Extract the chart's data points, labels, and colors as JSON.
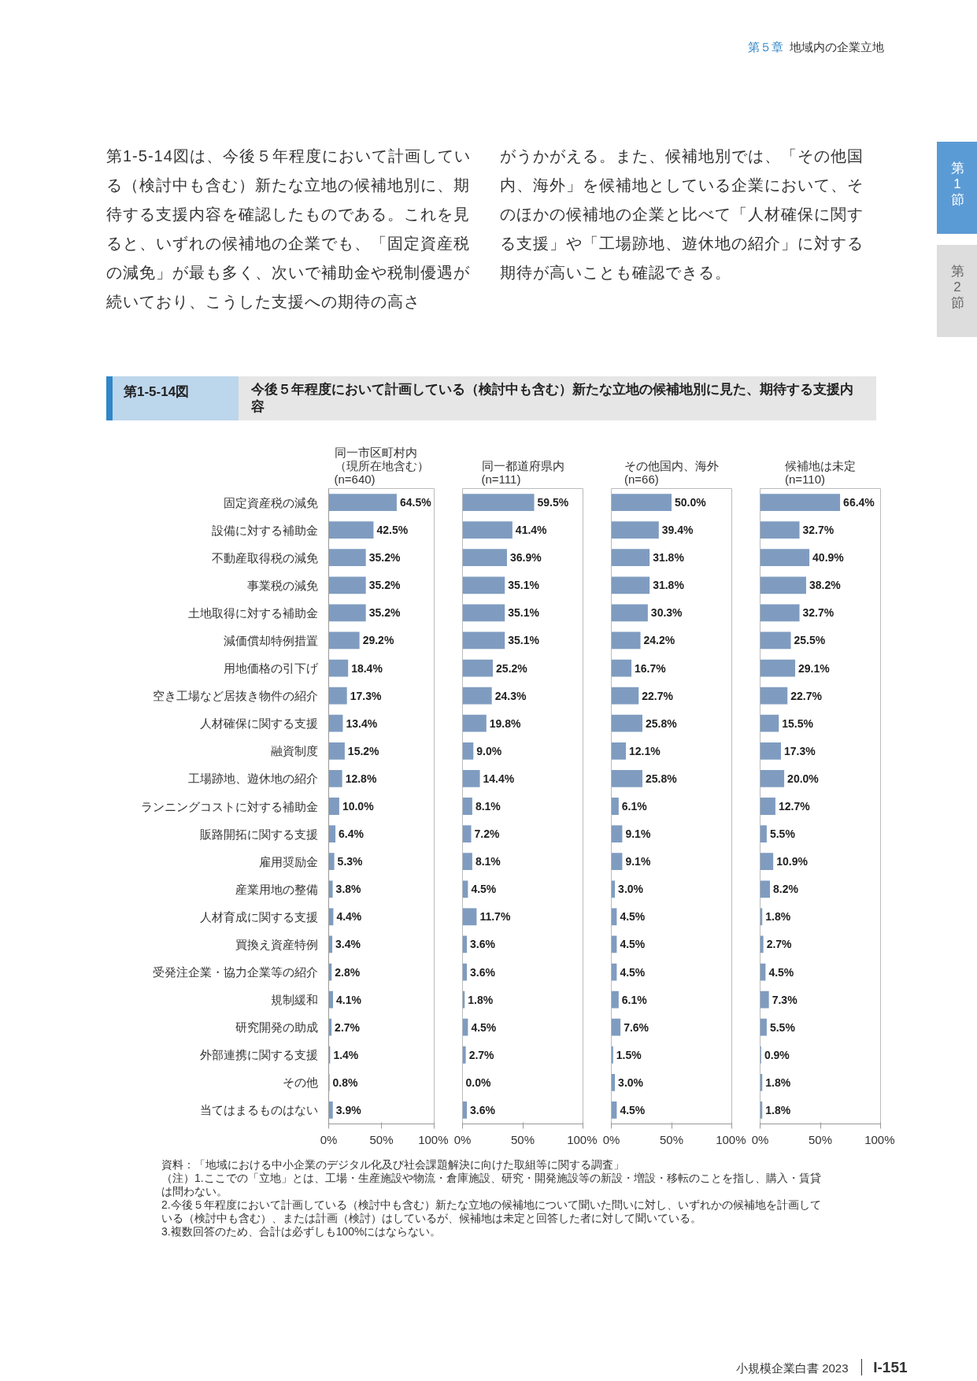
{
  "chart_data": [
    {
      "type": "bar",
      "orientation": "horizontal",
      "title": "同一市区町村内（現所在地含む）(n=640)",
      "categories": [
        "固定資産税の減免",
        "設備に対する補助金",
        "不動産取得税の減免",
        "事業税の減免",
        "土地取得に対する補助金",
        "減価償却特例措置",
        "用地価格の引下げ",
        "空き工場など居抜き物件の紹介",
        "人材確保に関する支援",
        "融資制度",
        "工場跡地、遊休地の紹介",
        "ランニングコストに対する補助金",
        "販路開拓に関する支援",
        "雇用奨励金",
        "産業用地の整備",
        "人材育成に関する支援",
        "買換え資産特例",
        "受発注企業・協力企業等の紹介",
        "規制緩和",
        "研究開発の助成",
        "外部連携に関する支援",
        "その他",
        "当てはまるものはない"
      ],
      "values": [
        64.5,
        42.5,
        35.2,
        35.2,
        35.2,
        29.2,
        18.4,
        17.3,
        13.4,
        15.2,
        12.8,
        10.0,
        6.4,
        5.3,
        3.8,
        4.4,
        3.4,
        2.8,
        4.1,
        2.7,
        1.4,
        0.8,
        3.9
      ],
      "value_labels": [
        "64.5%",
        "42.5%",
        "35.2%",
        "35.2%",
        "35.2%",
        "29.2%",
        "18.4%",
        "17.3%",
        "13.4%",
        "15.2%",
        "12.8%",
        "10.0%",
        "6.4%",
        "5.3%",
        "3.8%",
        "4.4%",
        "3.4%",
        "2.8%",
        "4.1%",
        "2.7%",
        "1.4%",
        "0.8%",
        "3.9%"
      ],
      "color": "#7f9cc0",
      "xlim": [
        0,
        100
      ],
      "xticks": [
        {
          "value": 0,
          "label": "0%"
        },
        {
          "value": 50,
          "label": "50%"
        },
        {
          "value": 100,
          "label": "100%"
        }
      ],
      "annotations": [
        "第５章",
        "地域内の企業立地",
        "第1-5-14図は、今後５年程度において計画している（検討中も含む）新たな立地の候補地別に、期待する支援内容を確認したものである。これを見ると、いずれの候補地の企業でも、「固定資産税の減免」が最も多く、次いで補助金や税制優遇が続いており、こうした支援への期待の高さ",
        "がうかがえる。また、候補地別では、「その他国内、海外」を候補地としている企業において、そのほかの候補地の企業と比べて「人材確保に関する支援」や「工場跡地、遊休地の紹介」に対する期待が高いことも確認できる。",
        "第1節",
        "第2節",
        "第1-5-14図",
        "今後５年程度において計画している（検討中も含む）新たな立地の候補地別に見た、期待する支援内容",
        "資料：「地域における中小企業のデジタル化及び社会課題解決に向けた取組等に関する調査」",
        "（注）1.ここでの「立地」とは、工場・生産施設や物流・倉庫施設、研究・開発施設等の新設・増設・移転のことを指し、購入・賃貸は問わない。",
        "2.今後５年程度において計画している（検討中も含む）新たな立地の候補地について聞いた問いに対し、いずれかの候補地を計画している（検討中も含む）、または計画（検討）はしているが、候補地は未定と回答した者に対して聞いている。",
        "3.複数回答のため、合計は必ずしも100%にはならない。",
        "小規模企業白書 2023",
        "I-151"
      ]
    },
    {
      "type": "bar",
      "orientation": "horizontal",
      "title": "同一都道府県内(n=111)",
      "tick_labels": "x",
      "categories": [
        null,
        null,
        null,
        null,
        null,
        null,
        null,
        null,
        null,
        null,
        null,
        null,
        null,
        null,
        null,
        null,
        null,
        null,
        null,
        null,
        null,
        null,
        null
      ],
      "values": [
        59.5,
        41.4,
        36.9,
        35.1,
        35.1,
        35.1,
        25.2,
        24.3,
        19.8,
        9.0,
        14.4,
        8.1,
        7.2,
        8.1,
        4.5,
        11.7,
        3.6,
        3.6,
        1.8,
        4.5,
        2.7,
        0.0,
        3.6
      ],
      "value_labels": [
        "59.5%",
        "41.4%",
        "36.9%",
        "35.1%",
        "35.1%",
        "35.1%",
        "25.2%",
        "24.3%",
        "19.8%",
        "9.0%",
        "14.4%",
        "8.1%",
        "7.2%",
        "8.1%",
        "4.5%",
        "11.7%",
        "3.6%",
        "3.6%",
        "1.8%",
        "4.5%",
        "2.7%",
        "0.0%",
        "3.6%"
      ],
      "color": "#7f9cc0",
      "xlim": [
        0,
        100
      ],
      "xticks": [
        {
          "value": 0,
          "label": "0%"
        },
        {
          "value": 50,
          "label": "50%"
        },
        {
          "value": 100,
          "label": "100%"
        }
      ]
    },
    {
      "type": "bar",
      "orientation": "horizontal",
      "title": "その他国内、海外(n=66)",
      "tick_labels": "x",
      "categories": [
        null,
        null,
        null,
        null,
        null,
        null,
        null,
        null,
        null,
        null,
        null,
        null,
        null,
        null,
        null,
        null,
        null,
        null,
        null,
        null,
        null,
        null,
        null
      ],
      "values": [
        50.0,
        39.4,
        31.8,
        31.8,
        30.3,
        24.2,
        16.7,
        22.7,
        25.8,
        12.1,
        25.8,
        6.1,
        9.1,
        9.1,
        3.0,
        4.5,
        4.5,
        4.5,
        6.1,
        7.6,
        1.5,
        3.0,
        4.5
      ],
      "value_labels": [
        "50.0%",
        "39.4%",
        "31.8%",
        "31.8%",
        "30.3%",
        "24.2%",
        "16.7%",
        "22.7%",
        "25.8%",
        "12.1%",
        "25.8%",
        "6.1%",
        "9.1%",
        "9.1%",
        "3.0%",
        "4.5%",
        "4.5%",
        "4.5%",
        "6.1%",
        "7.6%",
        "1.5%",
        "3.0%",
        "4.5%"
      ],
      "color": "#7f9cc0",
      "xlim": [
        0,
        100
      ],
      "xticks": [
        {
          "value": 0,
          "label": "0%"
        },
        {
          "value": 50,
          "label": "50%"
        },
        {
          "value": 100,
          "label": "100%"
        }
      ]
    },
    {
      "type": "bar",
      "orientation": "horizontal",
      "title": "候補地は未定(n=110)",
      "tick_labels": "x",
      "categories": [
        null,
        null,
        null,
        null,
        null,
        null,
        null,
        null,
        null,
        null,
        null,
        null,
        null,
        null,
        null,
        null,
        null,
        null,
        null,
        null,
        null,
        null,
        null
      ],
      "values": [
        66.4,
        32.7,
        40.9,
        38.2,
        32.7,
        25.5,
        29.1,
        22.7,
        15.5,
        17.3,
        20.0,
        12.7,
        5.5,
        10.9,
        8.2,
        1.8,
        2.7,
        4.5,
        7.3,
        5.5,
        0.9,
        1.8,
        1.8
      ],
      "value_labels": [
        "66.4%",
        "32.7%",
        "40.9%",
        "38.2%",
        "32.7%",
        "25.5%",
        "29.1%",
        "22.7%",
        "15.5%",
        "17.3%",
        "20.0%",
        "12.7%",
        "5.5%",
        "10.9%",
        "8.2%",
        "1.8%",
        "2.7%",
        "4.5%",
        "7.3%",
        "5.5%",
        "0.9%",
        "1.8%",
        "1.8%"
      ],
      "color": "#7f9cc0",
      "xlim": [
        0,
        100
      ],
      "xticks": [
        {
          "value": 0,
          "label": "0%"
        },
        {
          "value": 50,
          "label": "50%"
        },
        {
          "value": 100,
          "label": "100%"
        }
      ]
    }
  ]
}
